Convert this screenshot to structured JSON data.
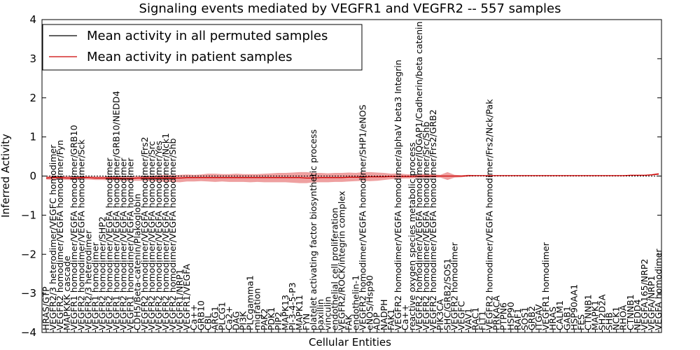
{
  "chart_data": {
    "type": "line",
    "title": "Signaling events mediated by VEGFR1 and VEGFR2 -- 557 samples",
    "xlabel": "Cellular Entities",
    "ylabel": "Inferred Activity",
    "ylim": [
      -4,
      4
    ],
    "yticks": [
      -4,
      -3,
      -2,
      -1,
      0,
      1,
      2,
      3,
      4
    ],
    "legend_position": "top-left",
    "colors": {
      "permuted": "#000000",
      "patient": "#cc0000",
      "band": "#e88080",
      "frame": "#000000"
    },
    "categories": [
      "HRAS/GTP",
      "VEGFR2/3 heterodimer/VEGFC homodimer",
      "VEGFR2 homodimer/VEGFA homodimer/Fyn",
      "MAPKKK cascade",
      "VEGFR1 homodimer/VEGFA homodimer/GRB10",
      "VEGFR2 homodimer/VEGFA homodimer/Sck",
      "VEGFR2/3 heterodimer",
      "VEGFR1 homodimer",
      "VEGFR2 homodimer/SHP2",
      "VEGFR2 homodimer/VEGFA homodimer",
      "VEGFR1 homodimer/VEGFA homodimer/GRB10/NEDD4",
      "VEGFR2 homodimer/VEGFA homodimer",
      "VEGFR1 homodimer/VEGFA homodimer",
      "CDH5/Beta-catenin/Plakoglobin",
      "VEGFR2 homodimer/VEGFA homodimer/Frs2",
      "VEGFR2 homodimer/VEGFA homodimer/Src",
      "VEGFR2 homodimer/VEGFA homodimer/Yes",
      "VEGFR2 homodimer/VEGFA homodimer/Nck1",
      "VEGFR2 homodimer/VEGFA homodimer/Shb",
      "VEGFR1/NRP1",
      "VEGFR1/VEGFA",
      "Ca++",
      "GRB10",
      "CBL",
      "ARG1",
      "PLCG1",
      "Ca2+",
      "DAG",
      "PI3K",
      "PLCgamma1",
      "migration",
      "PAK2",
      "PDK1",
      "PIP2",
      "MAPK13",
      "PI-3-4-5-P3",
      "MAPK11",
      "FYN",
      "platelet activating factor biosynthetic process",
      "paxillin",
      "vinculin",
      "endothelial cell proliferation",
      "VEGFR2/ROCK/integrin complex",
      "FAK",
      "endothelin-1",
      "VEGFR2 homodimer/VEGFA homodimer/SHP1/eNOS",
      "eNOS/Hsp90",
      "ADP",
      "NADPH",
      "FAK1",
      "VEGFR2 homodimer/VEGFA homodimer/alphaV beta3 Integrin",
      "Ca++",
      "reactive oxygen species metabolic process",
      "VEGFR2 homodimer/VEGFA homodimer/IQGAP1/Cadherin/beta catenin",
      "VEGFR2 homodimer/VEGFA homodimer/Src/Shb",
      "VEGFR2 homodimer/VEGFA homodimer/Frs2/GRB2",
      "PIK3CA",
      "SHC/GRB2/SOS1",
      "VEGFR2 homodimer",
      "VEGFC",
      "VAV1",
      "RAC1",
      "FLT1",
      "VEGFR2 homodimer/VEGFA homodimer/Frs2/Nck/Pak",
      "PRKACA",
      "PTPN6",
      "HSP90",
      "RAF1",
      "SOS1",
      "GRB2",
      "ITGAV",
      "VEGFR1 homodimer",
      "HRAS",
      "CALM1",
      "GAB1",
      "HSP90AA1",
      "FES",
      "CTNNB1",
      "MAPK1",
      "SH2D2A",
      "SHB",
      "NCK1",
      "RHOA",
      "CTNNB1",
      "NEDD4",
      "VEGFA165/NRP2",
      "VEGFA/NRP1",
      "VEGFA homodimer"
    ],
    "series": [
      {
        "name": "Mean activity in all permuted samples",
        "color": "#000000",
        "values": [
          0,
          0,
          0,
          0,
          0,
          0,
          0,
          0,
          0,
          0,
          0,
          0,
          0,
          0,
          0,
          0,
          0,
          0,
          0,
          0,
          0,
          0,
          0,
          0,
          0,
          0,
          0,
          0,
          0,
          0,
          0,
          0,
          0,
          0,
          0,
          0,
          0,
          0,
          0,
          0,
          0,
          0,
          0,
          0,
          0,
          0,
          0,
          0,
          0,
          0,
          0,
          0,
          0,
          0,
          0,
          0,
          0,
          0,
          0,
          0,
          0,
          0,
          0,
          0,
          0,
          0,
          0,
          0,
          0,
          0,
          0,
          0,
          0,
          0,
          0,
          0,
          0,
          0,
          0,
          0,
          0,
          0,
          0,
          0,
          0,
          0,
          0,
          0
        ]
      },
      {
        "name": "Mean activity in patient samples",
        "color": "#cc0000",
        "values": [
          -0.05,
          -0.04,
          -0.04,
          -0.05,
          -0.05,
          -0.04,
          -0.04,
          -0.05,
          -0.05,
          -0.05,
          -0.05,
          -0.06,
          -0.06,
          -0.05,
          -0.05,
          -0.05,
          -0.05,
          -0.05,
          -0.05,
          -0.05,
          -0.04,
          -0.04,
          -0.04,
          -0.04,
          -0.04,
          -0.04,
          -0.04,
          -0.04,
          -0.04,
          -0.04,
          -0.04,
          -0.04,
          -0.04,
          -0.04,
          -0.04,
          -0.04,
          -0.04,
          -0.05,
          -0.05,
          -0.04,
          -0.04,
          -0.04,
          -0.04,
          -0.03,
          -0.03,
          -0.03,
          -0.02,
          -0.02,
          -0.02,
          -0.01,
          -0.01,
          -0.01,
          -0.01,
          0,
          0,
          0,
          0,
          0,
          0,
          0,
          0.01,
          0.01,
          0.01,
          0.01,
          0.01,
          0.01,
          0.01,
          0.01,
          0.01,
          0.01,
          0.01,
          0.01,
          0.01,
          0.01,
          0.01,
          0.01,
          0.01,
          0.01,
          0.01,
          0.01,
          0.01,
          0.01,
          0.01,
          0.02,
          0.02,
          0.02,
          0.03,
          0.05
        ]
      }
    ],
    "band": {
      "name": "patient activity spread",
      "upper": [
        -0.01,
        0.01,
        0,
        0,
        -0.01,
        0,
        0,
        -0.01,
        -0.01,
        -0.01,
        -0.01,
        -0.01,
        -0.01,
        0,
        0.01,
        0.01,
        0.02,
        0.03,
        0.02,
        0.03,
        0.04,
        0.03,
        0.04,
        0.06,
        0.06,
        0.05,
        0.05,
        0.06,
        0.05,
        0.05,
        0.05,
        0.06,
        0.07,
        0.08,
        0.08,
        0.09,
        0.1,
        0.1,
        0.08,
        0.08,
        0.07,
        0.08,
        0.08,
        0.09,
        0.08,
        0.1,
        0.1,
        0.09,
        0.08,
        0.06,
        0.07,
        0.05,
        0.04,
        0.05,
        0.06,
        0.04,
        0.03,
        0.1,
        0.03,
        0.02,
        0.03,
        0.02,
        0.02,
        0.02,
        0.02,
        0.02,
        0.02,
        0.02,
        0.02,
        0.02,
        0.02,
        0.02,
        0.02,
        0.02,
        0.02,
        0.02,
        0.02,
        0.02,
        0.02,
        0.02,
        0.02,
        0.02,
        0.02,
        0.03,
        0.03,
        0.03,
        0.05,
        0.08
      ],
      "lower": [
        -0.09,
        -0.1,
        -0.09,
        -0.1,
        -0.1,
        -0.09,
        -0.09,
        -0.1,
        -0.1,
        -0.11,
        -0.11,
        -0.12,
        -0.12,
        -0.12,
        -0.12,
        -0.13,
        -0.14,
        -0.15,
        -0.15,
        -0.16,
        -0.14,
        -0.14,
        -0.13,
        -0.14,
        -0.15,
        -0.14,
        -0.15,
        -0.15,
        -0.15,
        -0.16,
        -0.15,
        -0.16,
        -0.16,
        -0.16,
        -0.16,
        -0.17,
        -0.18,
        -0.18,
        -0.16,
        -0.16,
        -0.16,
        -0.15,
        -0.15,
        -0.14,
        -0.13,
        -0.12,
        -0.13,
        -0.12,
        -0.1,
        -0.08,
        -0.07,
        -0.06,
        -0.06,
        -0.05,
        -0.05,
        -0.04,
        -0.04,
        -0.1,
        -0.04,
        -0.03,
        -0.01,
        0,
        0,
        0,
        0,
        0,
        0,
        0,
        0,
        0,
        0,
        0,
        0,
        0,
        0,
        0,
        0,
        0,
        0,
        0,
        0,
        0,
        0,
        0.01,
        0.01,
        0.01,
        0.02,
        0.03
      ]
    }
  }
}
